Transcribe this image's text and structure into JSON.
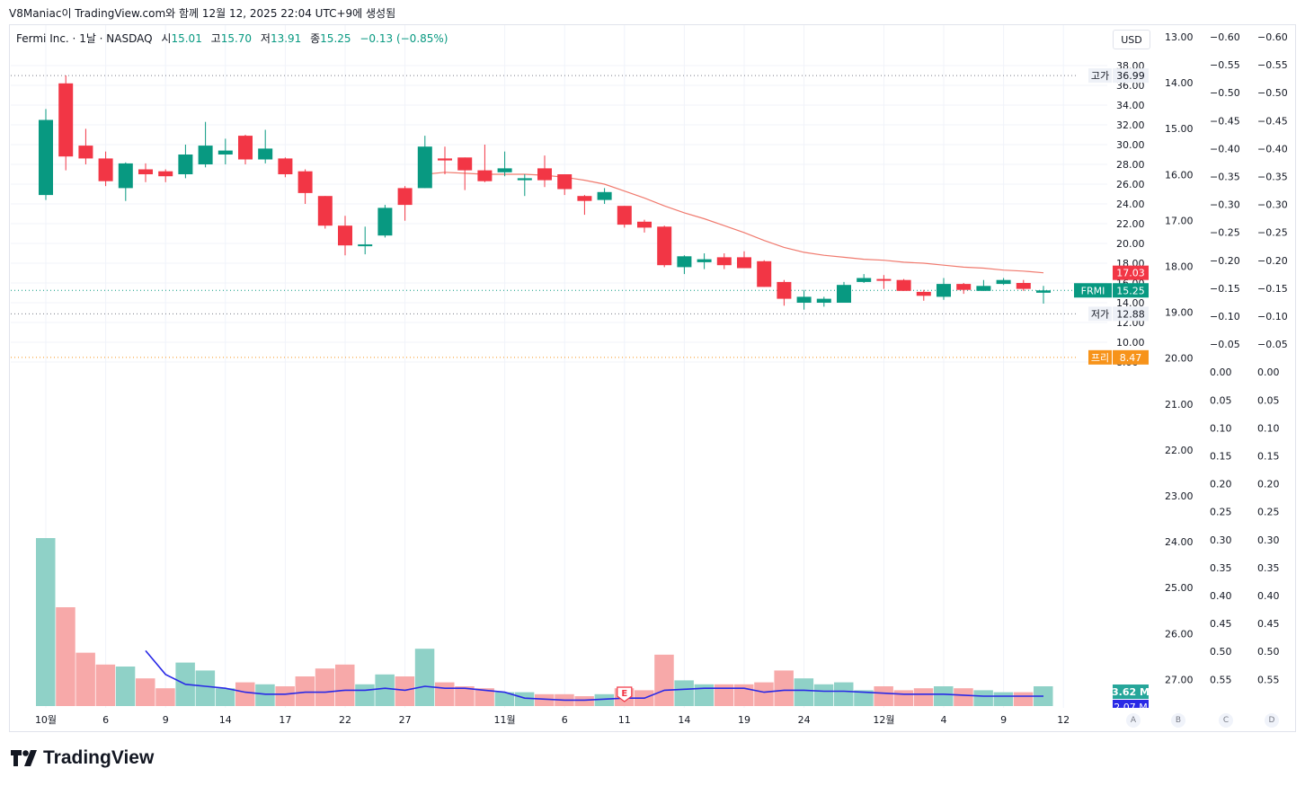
{
  "caption": "V8Maniac이 TradingView.com와 함께 12월 12, 2025 22:04 UTC+9에 생성됨",
  "legend": {
    "symbol": "Fermi Inc. · 1날 · NASDAQ",
    "open_label": "시",
    "open": "15.01",
    "high_label": "고",
    "high": "15.70",
    "low_label": "저",
    "low": "13.91",
    "close_label": "종",
    "close": "15.25",
    "change": "−0.13 (−0.85%)"
  },
  "currency": "USD",
  "scale_buttons": [
    "A",
    "B",
    "C",
    "D"
  ],
  "brand": "TradingView",
  "colors": {
    "up": "#089981",
    "down": "#f23645",
    "vol_up": "#8fd1c7",
    "vol_down": "#f7a9a9",
    "ma": "#f07a6e",
    "vol_ma": "#2929e6",
    "grid": "#f0f3fa"
  },
  "chart_data": {
    "type": "candlestick",
    "symbol": "FRMI",
    "x_tick_labels": [
      "10월",
      "6",
      "9",
      "14",
      "17",
      "22",
      "27",
      "11월",
      "6",
      "11",
      "14",
      "19",
      "24",
      "12월",
      "4",
      "9",
      "12"
    ],
    "candles": [
      {
        "o": 24.9,
        "h": 33.6,
        "l": 24.4,
        "c": 32.5
      },
      {
        "o": 36.2,
        "h": 37.0,
        "l": 27.4,
        "c": 28.8
      },
      {
        "o": 29.9,
        "h": 31.6,
        "l": 28.0,
        "c": 28.6
      },
      {
        "o": 28.6,
        "h": 29.3,
        "l": 25.8,
        "c": 26.3
      },
      {
        "o": 25.6,
        "h": 28.2,
        "l": 24.3,
        "c": 28.1
      },
      {
        "o": 27.5,
        "h": 28.1,
        "l": 26.2,
        "c": 27.0
      },
      {
        "o": 27.3,
        "h": 27.5,
        "l": 26.2,
        "c": 26.8
      },
      {
        "o": 27.0,
        "h": 30.0,
        "l": 26.6,
        "c": 29.0
      },
      {
        "o": 28.0,
        "h": 32.3,
        "l": 27.7,
        "c": 29.9
      },
      {
        "o": 29.0,
        "h": 30.6,
        "l": 28.0,
        "c": 29.4
      },
      {
        "o": 30.9,
        "h": 31.0,
        "l": 28.0,
        "c": 28.5
      },
      {
        "o": 28.5,
        "h": 31.5,
        "l": 28.1,
        "c": 29.6
      },
      {
        "o": 28.6,
        "h": 28.7,
        "l": 26.7,
        "c": 27.0
      },
      {
        "o": 27.3,
        "h": 27.5,
        "l": 24.0,
        "c": 25.1
      },
      {
        "o": 24.8,
        "h": 24.8,
        "l": 21.5,
        "c": 21.8
      },
      {
        "o": 21.8,
        "h": 22.8,
        "l": 18.8,
        "c": 19.8
      },
      {
        "o": 19.9,
        "h": 21.7,
        "l": 18.9,
        "c": 19.9
      },
      {
        "o": 20.8,
        "h": 23.9,
        "l": 20.6,
        "c": 23.6
      },
      {
        "o": 25.6,
        "h": 25.8,
        "l": 22.3,
        "c": 23.9
      },
      {
        "o": 25.6,
        "h": 30.9,
        "l": 25.6,
        "c": 29.8
      },
      {
        "o": 28.6,
        "h": 29.8,
        "l": 27.0,
        "c": 28.4
      },
      {
        "o": 28.7,
        "h": 28.7,
        "l": 25.4,
        "c": 27.4
      },
      {
        "o": 27.4,
        "h": 30.0,
        "l": 26.2,
        "c": 26.3
      },
      {
        "o": 27.2,
        "h": 29.3,
        "l": 26.8,
        "c": 27.6
      },
      {
        "o": 26.4,
        "h": 27.0,
        "l": 24.8,
        "c": 26.6
      },
      {
        "o": 27.6,
        "h": 28.9,
        "l": 25.7,
        "c": 26.4
      },
      {
        "o": 27.0,
        "h": 27.0,
        "l": 24.9,
        "c": 25.5
      },
      {
        "o": 24.8,
        "h": 24.9,
        "l": 22.9,
        "c": 24.3
      },
      {
        "o": 24.4,
        "h": 25.6,
        "l": 24.0,
        "c": 25.2
      },
      {
        "o": 23.8,
        "h": 23.8,
        "l": 21.6,
        "c": 21.9
      },
      {
        "o": 22.2,
        "h": 22.4,
        "l": 21.1,
        "c": 21.6
      },
      {
        "o": 21.7,
        "h": 21.8,
        "l": 17.6,
        "c": 17.8
      },
      {
        "o": 17.6,
        "h": 18.8,
        "l": 16.9,
        "c": 18.7
      },
      {
        "o": 18.1,
        "h": 19.0,
        "l": 17.4,
        "c": 18.4
      },
      {
        "o": 18.6,
        "h": 19.0,
        "l": 17.4,
        "c": 17.8
      },
      {
        "o": 18.6,
        "h": 19.2,
        "l": 17.5,
        "c": 17.5
      },
      {
        "o": 18.2,
        "h": 18.3,
        "l": 15.6,
        "c": 15.6
      },
      {
        "o": 16.1,
        "h": 16.3,
        "l": 13.7,
        "c": 14.4
      },
      {
        "o": 14.0,
        "h": 15.3,
        "l": 13.3,
        "c": 14.6
      },
      {
        "o": 14.0,
        "h": 14.6,
        "l": 13.6,
        "c": 14.4
      },
      {
        "o": 14.0,
        "h": 16.1,
        "l": 14.0,
        "c": 15.8
      },
      {
        "o": 16.1,
        "h": 16.9,
        "l": 16.0,
        "c": 16.5
      },
      {
        "o": 16.4,
        "h": 16.8,
        "l": 15.4,
        "c": 16.3
      },
      {
        "o": 16.3,
        "h": 16.4,
        "l": 15.2,
        "c": 15.2
      },
      {
        "o": 15.1,
        "h": 15.3,
        "l": 14.2,
        "c": 14.7
      },
      {
        "o": 14.6,
        "h": 16.5,
        "l": 14.3,
        "c": 15.9
      },
      {
        "o": 15.9,
        "h": 16.0,
        "l": 14.9,
        "c": 15.3
      },
      {
        "o": 15.2,
        "h": 16.3,
        "l": 15.2,
        "c": 15.7
      },
      {
        "o": 15.9,
        "h": 16.5,
        "l": 15.8,
        "c": 16.3
      },
      {
        "o": 16.0,
        "h": 16.3,
        "l": 15.2,
        "c": 15.4
      },
      {
        "o": 15.01,
        "h": 15.7,
        "l": 13.91,
        "c": 15.25
      }
    ],
    "volume": [
      8.5,
      5.0,
      2.7,
      2.1,
      2.0,
      1.4,
      0.9,
      2.2,
      1.8,
      0.9,
      1.2,
      1.1,
      1.0,
      1.5,
      1.9,
      2.1,
      1.1,
      1.6,
      1.5,
      2.9,
      1.2,
      1.0,
      0.9,
      0.7,
      0.7,
      0.6,
      0.6,
      0.5,
      0.6,
      0.9,
      0.8,
      2.6,
      1.3,
      1.1,
      1.1,
      1.1,
      1.2,
      1.8,
      1.4,
      1.1,
      1.2,
      0.8,
      1.0,
      0.8,
      0.9,
      1.0,
      0.9,
      0.8,
      0.7,
      0.7,
      1.0
    ],
    "volume_ma": [
      null,
      null,
      null,
      null,
      null,
      2.8,
      1.6,
      1.1,
      1.0,
      0.9,
      0.7,
      0.6,
      0.6,
      0.7,
      0.7,
      0.8,
      0.8,
      0.9,
      0.8,
      1.0,
      0.9,
      0.9,
      0.8,
      0.7,
      0.4,
      0.35,
      0.3,
      0.3,
      0.35,
      0.4,
      0.4,
      0.8,
      0.85,
      0.9,
      0.9,
      0.9,
      0.7,
      0.8,
      0.8,
      0.75,
      0.75,
      0.7,
      0.65,
      0.6,
      0.6,
      0.6,
      0.55,
      0.5,
      0.5,
      0.5,
      0.5
    ],
    "ma_line": [
      null,
      null,
      null,
      null,
      null,
      null,
      null,
      null,
      null,
      null,
      null,
      null,
      null,
      null,
      null,
      null,
      null,
      null,
      null,
      27.0,
      27.2,
      27.1,
      27.0,
      27.0,
      27.0,
      26.9,
      26.7,
      26.4,
      26.0,
      25.3,
      24.6,
      23.8,
      23.1,
      22.5,
      21.8,
      21.1,
      20.3,
      19.6,
      19.1,
      18.8,
      18.6,
      18.4,
      18.3,
      18.1,
      18.0,
      17.8,
      17.6,
      17.5,
      17.3,
      17.2,
      17.03
    ],
    "y_axis_main": {
      "min": 12.0,
      "max": 38.0,
      "ticks": [
        "38.00",
        "36.00",
        "34.00",
        "32.00",
        "30.00",
        "28.00",
        "26.00",
        "24.00",
        "22.00",
        "20.00",
        "18.00",
        "16.00",
        "14.00",
        "12.00",
        "10.00",
        "8.00"
      ]
    },
    "y_axis_b": [
      "13.00",
      "14.00",
      "15.00",
      "16.00",
      "17.00",
      "18.00",
      "19.00",
      "20.00",
      "21.00",
      "22.00",
      "23.00",
      "24.00",
      "25.00",
      "26.00",
      "27.00"
    ],
    "y_axis_c": [
      "−0.60",
      "−0.55",
      "−0.50",
      "−0.45",
      "−0.40",
      "−0.35",
      "−0.30",
      "−0.25",
      "−0.20",
      "−0.15",
      "−0.10",
      "−0.05",
      "0.00",
      "0.05",
      "0.10",
      "0.15",
      "0.20",
      "0.25",
      "0.30",
      "0.35",
      "0.40",
      "0.45",
      "0.50",
      "0.55"
    ],
    "y_axis_d": [
      "−0.60",
      "−0.55",
      "−0.50",
      "−0.45",
      "−0.40",
      "−0.35",
      "−0.30",
      "−0.25",
      "−0.20",
      "−0.15",
      "−0.10",
      "−0.05",
      "0.00",
      "0.05",
      "0.10",
      "0.15",
      "0.20",
      "0.25",
      "0.30",
      "0.35",
      "0.40",
      "0.45",
      "0.50",
      "0.55"
    ],
    "labels": {
      "high": {
        "text": "고가",
        "value": "36.99"
      },
      "low": {
        "text": "저가",
        "value": "12.88"
      },
      "last": {
        "text": "FRMI",
        "value": "15.25"
      },
      "ma": {
        "value": "17.03"
      },
      "premarket": {
        "text": "프리",
        "value": "8.47"
      },
      "volume": {
        "value": "3.62 M"
      },
      "volume_ma": {
        "value": "2.07 M"
      }
    },
    "earnings_marker": "E",
    "grid": true
  }
}
